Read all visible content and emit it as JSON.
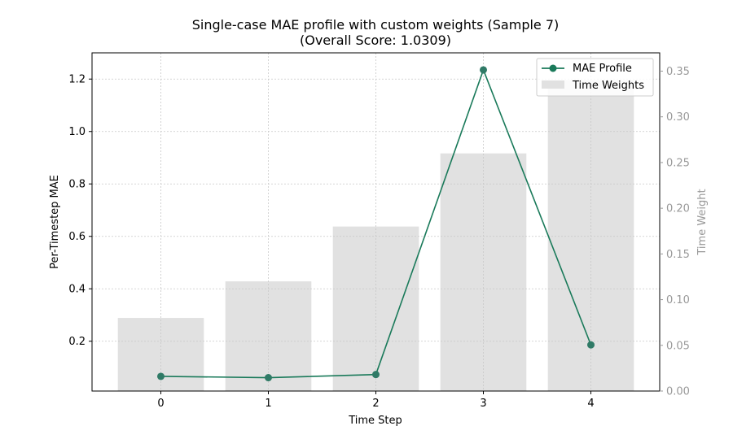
{
  "chart_data": {
    "type": "bar+line",
    "title": "Single-case MAE profile with custom weights (Sample 7)",
    "subtitle": "(Overall Score: 1.0309)",
    "xlabel": "Time Step",
    "ylabel": "Per-Timestep MAE",
    "y2label": "Time Weight",
    "categories": [
      0,
      1,
      2,
      3,
      4
    ],
    "ylim": [
      0.01,
      1.3
    ],
    "y2lim": [
      0.0,
      0.37
    ],
    "yticks": [
      0.2,
      0.4,
      0.6,
      0.8,
      1.0,
      1.2
    ],
    "y2ticks": [
      0.0,
      0.05,
      0.1,
      0.15,
      0.2,
      0.25,
      0.3,
      0.35
    ],
    "grid": true,
    "legend_position": "top-right",
    "series": [
      {
        "name": "MAE Profile",
        "kind": "line",
        "axis": "left",
        "color": "#1a7a5a",
        "values": [
          0.066,
          0.061,
          0.073,
          1.235,
          0.186
        ]
      },
      {
        "name": "Time Weights",
        "kind": "bar",
        "axis": "right",
        "color": "#e1e1e1",
        "values": [
          0.08,
          0.12,
          0.18,
          0.26,
          0.34
        ]
      }
    ]
  }
}
